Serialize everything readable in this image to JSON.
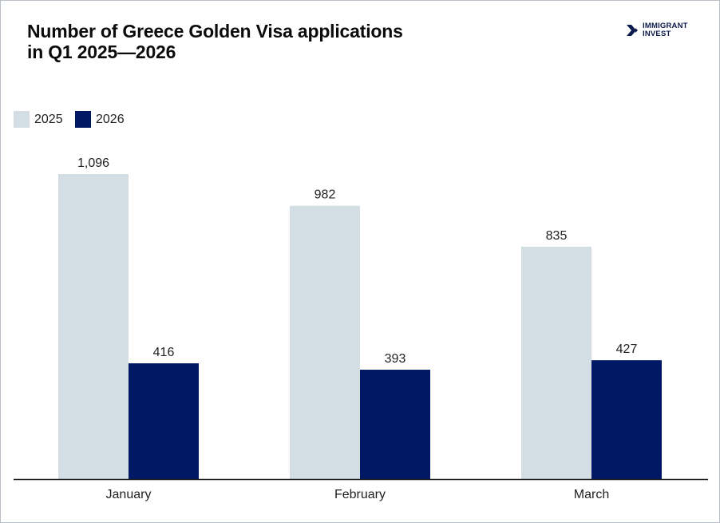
{
  "title_lines": [
    "Number of Greece Golden Visa applications",
    "in Q1 2025—2026"
  ],
  "brand": {
    "line1": "IMMIGRANT",
    "line2": "INVEST",
    "color": "#0c1b4d"
  },
  "chart_data": {
    "type": "bar",
    "title": "Number of Greece Golden Visa applications in Q1 2025—2026",
    "categories": [
      "January",
      "February",
      "March"
    ],
    "series": [
      {
        "name": "2025",
        "color": "#d3dee4",
        "values": [
          1096,
          982,
          835
        ],
        "labels": [
          "1,096",
          "982",
          "835"
        ]
      },
      {
        "name": "2026",
        "color": "#011865",
        "values": [
          416,
          393,
          427
        ],
        "labels": [
          "416",
          "393",
          "427"
        ]
      }
    ],
    "ylim": [
      0,
      1200
    ],
    "grid": false,
    "legend_position": "top-left",
    "xlabel": "",
    "ylabel": ""
  }
}
